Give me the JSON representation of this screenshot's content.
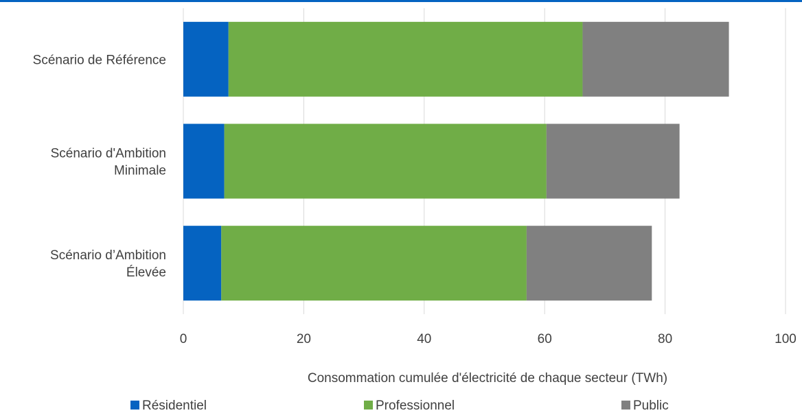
{
  "chart_data": {
    "type": "bar",
    "orientation": "horizontal",
    "stacked": true,
    "categories": [
      [
        "Scénario de Référence"
      ],
      [
        "Scénario d'Ambition",
        "Minimale"
      ],
      [
        "Scénario d’Ambition",
        "Élevée"
      ]
    ],
    "series": [
      {
        "name": "Résidentiel",
        "color": "#0563C1",
        "values": [
          7.5,
          6.8,
          6.3
        ]
      },
      {
        "name": "Professionnel",
        "color": "#70AD47",
        "values": [
          58.8,
          53.5,
          50.7
        ]
      },
      {
        "name": "Public",
        "color": "#808080",
        "values": [
          24.3,
          22.1,
          20.8
        ]
      }
    ],
    "xlabel": "Consommation cumulée d'électricité de chaque secteur (TWh)",
    "xlim": [
      0,
      100
    ],
    "xticks": [
      0,
      20,
      40,
      60,
      80,
      100
    ],
    "grid": "vertical",
    "legend": "bottom",
    "colors": {
      "text": "#404040",
      "grid": "#D9D9D9",
      "top_rule": "#0563C1"
    }
  }
}
